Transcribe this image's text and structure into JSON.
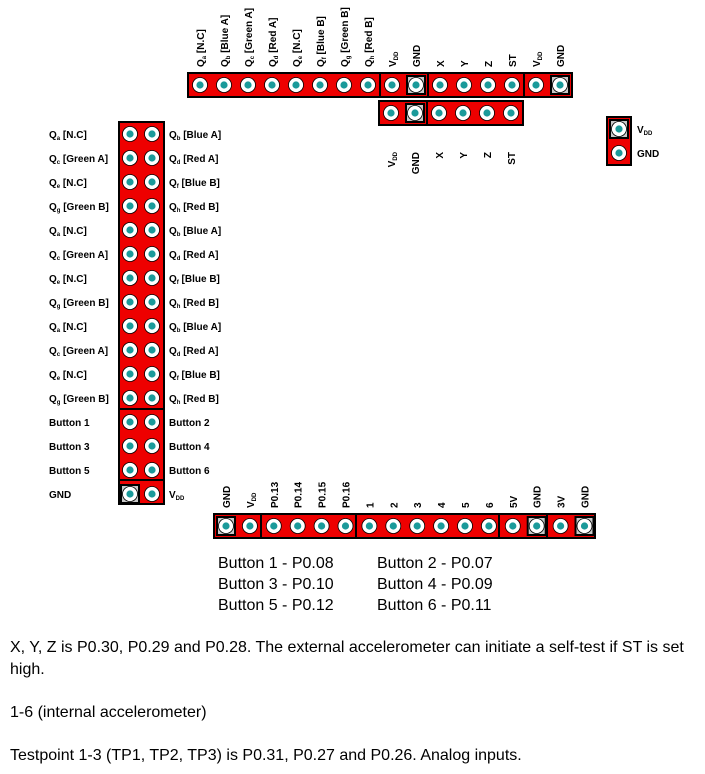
{
  "top_header": {
    "labels": [
      {
        "main": "Q",
        "sub": "a",
        "suffix": " [N.C]"
      },
      {
        "main": "Q",
        "sub": "b",
        "suffix": " [Blue A]"
      },
      {
        "main": "Q",
        "sub": "c",
        "suffix": " [Green A]"
      },
      {
        "main": "Q",
        "sub": "d",
        "suffix": " [Red A]"
      },
      {
        "main": "Q",
        "sub": "e",
        "suffix": " [N.C]"
      },
      {
        "main": "Q",
        "sub": "f",
        "suffix": " [Blue B]"
      },
      {
        "main": "Q",
        "sub": "g",
        "suffix": " [Green B]"
      },
      {
        "main": "Q",
        "sub": "h",
        "suffix": " [Red B]"
      },
      {
        "main": "V",
        "sub": "DD",
        "suffix": ""
      },
      {
        "main": "GND",
        "sub": "",
        "suffix": ""
      },
      {
        "main": "X",
        "sub": "",
        "suffix": ""
      },
      {
        "main": "Y",
        "sub": "",
        "suffix": ""
      },
      {
        "main": "Z",
        "sub": "",
        "suffix": ""
      },
      {
        "main": "ST",
        "sub": "",
        "suffix": ""
      },
      {
        "main": "V",
        "sub": "DD",
        "suffix": ""
      },
      {
        "main": "GND",
        "sub": "",
        "suffix": ""
      }
    ],
    "square_pins": [
      9,
      15
    ]
  },
  "second_header": {
    "labels": [
      {
        "main": "V",
        "sub": "DD",
        "suffix": ""
      },
      {
        "main": "GND",
        "sub": "",
        "suffix": ""
      },
      {
        "main": "X",
        "sub": "",
        "suffix": ""
      },
      {
        "main": "Y",
        "sub": "",
        "suffix": ""
      },
      {
        "main": "Z",
        "sub": "",
        "suffix": ""
      },
      {
        "main": "ST",
        "sub": "",
        "suffix": ""
      }
    ],
    "square_pins": [
      1
    ]
  },
  "power_header": {
    "labels": [
      {
        "main": "V",
        "sub": "DD",
        "suffix": ""
      },
      {
        "main": "GND",
        "sub": "",
        "suffix": ""
      }
    ],
    "square_pins": [
      0
    ]
  },
  "left_header": {
    "rows": [
      {
        "left": {
          "main": "Q",
          "sub": "a",
          "suffix": " [N.C]"
        },
        "right": {
          "main": "Q",
          "sub": "b",
          "suffix": " [Blue A]"
        }
      },
      {
        "left": {
          "main": "Q",
          "sub": "c",
          "suffix": " [Green A]"
        },
        "right": {
          "main": "Q",
          "sub": "d",
          "suffix": " [Red A]"
        }
      },
      {
        "left": {
          "main": "Q",
          "sub": "e",
          "suffix": " [N.C]"
        },
        "right": {
          "main": "Q",
          "sub": "f",
          "suffix": " [Blue B]"
        }
      },
      {
        "left": {
          "main": "Q",
          "sub": "g",
          "suffix": " [Green B]"
        },
        "right": {
          "main": "Q",
          "sub": "h",
          "suffix": " [Red B]"
        }
      },
      {
        "left": {
          "main": "Q",
          "sub": "a",
          "suffix": " [N.C]"
        },
        "right": {
          "main": "Q",
          "sub": "b",
          "suffix": " [Blue A]"
        }
      },
      {
        "left": {
          "main": "Q",
          "sub": "c",
          "suffix": " [Green A]"
        },
        "right": {
          "main": "Q",
          "sub": "d",
          "suffix": " [Red A]"
        }
      },
      {
        "left": {
          "main": "Q",
          "sub": "e",
          "suffix": " [N.C]"
        },
        "right": {
          "main": "Q",
          "sub": "f",
          "suffix": " [Blue B]"
        }
      },
      {
        "left": {
          "main": "Q",
          "sub": "g",
          "suffix": " [Green B]"
        },
        "right": {
          "main": "Q",
          "sub": "h",
          "suffix": " [Red B]"
        }
      },
      {
        "left": {
          "main": "Q",
          "sub": "a",
          "suffix": " [N.C]"
        },
        "right": {
          "main": "Q",
          "sub": "b",
          "suffix": " [Blue A]"
        }
      },
      {
        "left": {
          "main": "Q",
          "sub": "c",
          "suffix": " [Green A]"
        },
        "right": {
          "main": "Q",
          "sub": "d",
          "suffix": " [Red A]"
        }
      },
      {
        "left": {
          "main": "Q",
          "sub": "e",
          "suffix": " [N.C]"
        },
        "right": {
          "main": "Q",
          "sub": "f",
          "suffix": " [Blue B]"
        }
      },
      {
        "left": {
          "main": "Q",
          "sub": "g",
          "suffix": " [Green B]"
        },
        "right": {
          "main": "Q",
          "sub": "h",
          "suffix": " [Red B]"
        }
      },
      {
        "left": {
          "main": "Button 1",
          "sub": "",
          "suffix": ""
        },
        "right": {
          "main": "Button 2",
          "sub": "",
          "suffix": ""
        }
      },
      {
        "left": {
          "main": "Button 3",
          "sub": "",
          "suffix": ""
        },
        "right": {
          "main": "Button 4",
          "sub": "",
          "suffix": ""
        }
      },
      {
        "left": {
          "main": "Button 5",
          "sub": "",
          "suffix": ""
        },
        "right": {
          "main": "Button 6",
          "sub": "",
          "suffix": ""
        }
      },
      {
        "left": {
          "main": "GND",
          "sub": "",
          "suffix": ""
        },
        "right": {
          "main": "V",
          "sub": "DD",
          "suffix": ""
        }
      }
    ],
    "square_pins": [
      [
        15,
        0
      ]
    ]
  },
  "bottom_header": {
    "labels": [
      {
        "main": "GND",
        "sub": "",
        "suffix": ""
      },
      {
        "main": "V",
        "sub": "DD",
        "suffix": ""
      },
      {
        "main": "P0.13",
        "sub": "",
        "suffix": ""
      },
      {
        "main": "P0.14",
        "sub": "",
        "suffix": ""
      },
      {
        "main": "P0.15",
        "sub": "",
        "suffix": ""
      },
      {
        "main": "P0.16",
        "sub": "",
        "suffix": ""
      },
      {
        "main": "1",
        "sub": "",
        "suffix": ""
      },
      {
        "main": "2",
        "sub": "",
        "suffix": ""
      },
      {
        "main": "3",
        "sub": "",
        "suffix": ""
      },
      {
        "main": "4",
        "sub": "",
        "suffix": ""
      },
      {
        "main": "5",
        "sub": "",
        "suffix": ""
      },
      {
        "main": "6",
        "sub": "",
        "suffix": ""
      },
      {
        "main": "5V",
        "sub": "",
        "suffix": ""
      },
      {
        "main": "GND",
        "sub": "",
        "suffix": ""
      },
      {
        "main": "3V",
        "sub": "",
        "suffix": ""
      },
      {
        "main": "GND",
        "sub": "",
        "suffix": ""
      }
    ],
    "square_pins": [
      0,
      13,
      15
    ]
  },
  "button_mapping": [
    [
      "Button 1 - P0.08",
      "Button 2 - P0.07"
    ],
    [
      "Button 3 - P0.10",
      "Button 4 - P0.09"
    ],
    [
      "Button 5 - P0.12",
      "Button 6 - P0.11"
    ]
  ],
  "notes": {
    "accelerometer": "X, Y, Z is P0.30, P0.29 and P0.28. The external accelerometer can initiate a self-test if ST is set high.",
    "internal": "1-6 (internal accelerometer)",
    "testpoint": "Testpoint 1-3 (TP1, TP2, TP3) is P0.31, P0.27 and P0.26. Analog inputs."
  },
  "colors": {
    "board": "#ee0000",
    "outline": "#000000",
    "pin_ring": "#ffffff",
    "pin_center": "#1a9a9a",
    "square_fill": "#c8c8c8"
  }
}
